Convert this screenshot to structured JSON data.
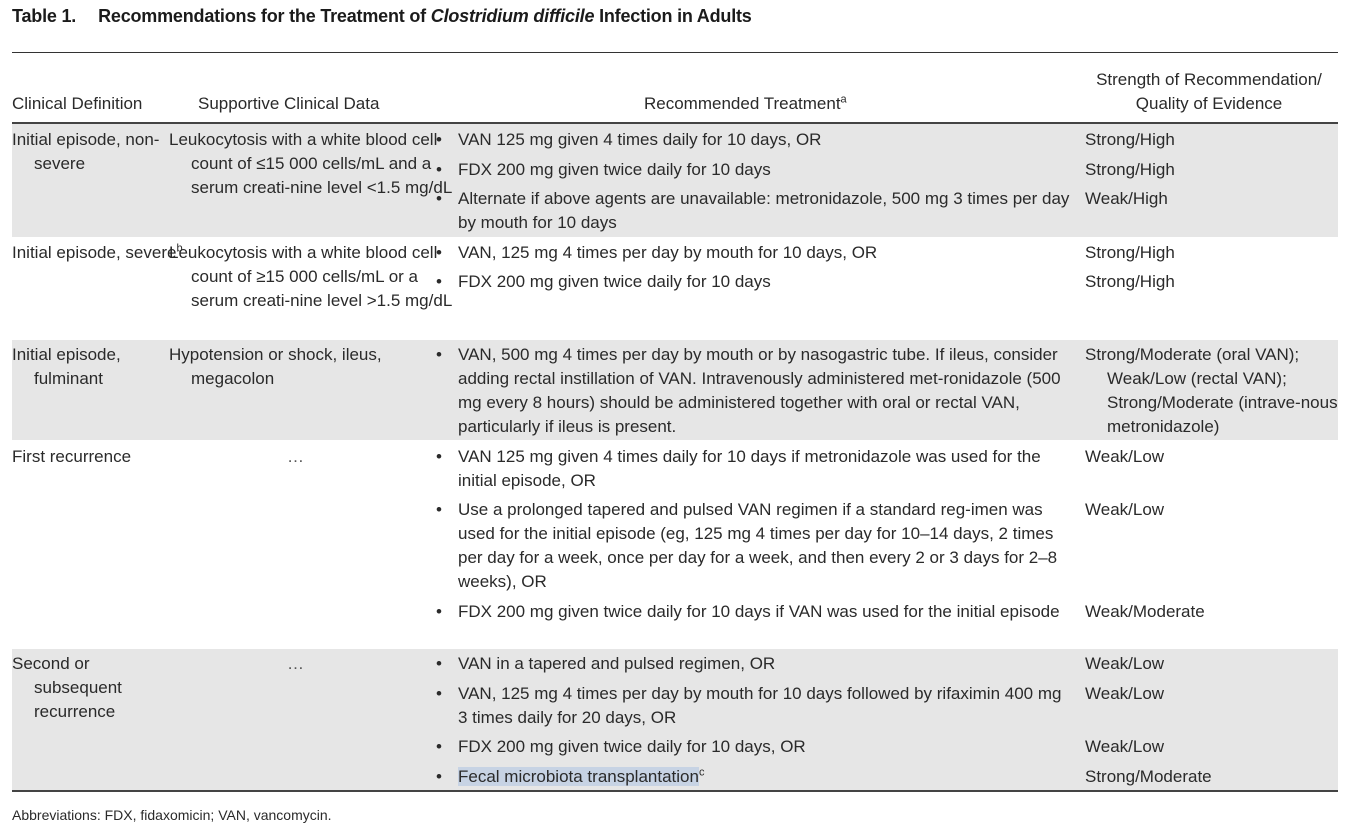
{
  "title": {
    "number": "Table 1.",
    "prefix": "Recommendations for the Treatment of",
    "organism": "Clostridium difficile",
    "suffix": "Infection in Adults"
  },
  "headers": {
    "clinical_definition": "Clinical Definition",
    "supportive_data": "Supportive Clinical Data",
    "treatment": "Recommended Treatment",
    "treatment_sup": "a",
    "strength_line1": "Strength of Recommendation/",
    "strength_line2": "Quality of Evidence"
  },
  "rows": [
    {
      "definition": "Initial episode, non-severe",
      "supportive": "Leukocytosis with a white blood cell count of ≤15 000 cells/mL and a serum creati-nine level <1.5 mg/dL",
      "treatments": [
        {
          "text": "VAN 125 mg given 4 times daily for 10 days, OR",
          "strength": "Strong/High"
        },
        {
          "text": "FDX 200 mg given twice daily for 10 days",
          "strength": "Strong/High"
        },
        {
          "text": "Alternate if above agents are unavailable: metronidazole, 500 mg 3 times per day by mouth for 10 days",
          "strength": "Weak/High"
        }
      ]
    },
    {
      "definition": "Initial episode, severe",
      "definition_sup": "b",
      "supportive": "Leukocytosis with a white blood cell count of ≥15 000 cells/mL or a serum creati-nine level >1.5 mg/dL",
      "treatments": [
        {
          "text": "VAN, 125 mg 4 times per day by mouth for 10 days, OR",
          "strength": "Strong/High"
        },
        {
          "text": "FDX 200 mg given twice daily for 10 days",
          "strength": "Strong/High"
        }
      ]
    },
    {
      "definition": "Initial episode, fulminant",
      "supportive": "Hypotension or shock, ileus, megacolon",
      "treatments": [
        {
          "text": "VAN, 500 mg 4 times per day by mouth or by nasogastric tube. If ileus, consider adding rectal instillation of VAN. Intravenously administered met-ronidazole (500 mg every 8 hours) should be administered together with oral or rectal VAN, particularly if ileus is present.",
          "strength": "Strong/Moderate (oral VAN); Weak/Low (rectal VAN); Strong/Moderate (intrave-nous metronidazole)"
        }
      ]
    },
    {
      "definition": "First recurrence",
      "supportive": "…",
      "treatments": [
        {
          "text": "VAN 125 mg given 4 times daily for 10 days if metronidazole was used for the initial episode, OR",
          "strength": "Weak/Low"
        },
        {
          "text": "Use a prolonged tapered and pulsed VAN regimen if a standard reg-imen was used for the initial episode (eg, 125 mg 4 times per day for 10–14 days, 2 times per day for a week, once per day for a week, and then every 2 or 3 days for 2–8 weeks), OR",
          "strength": "Weak/Low"
        },
        {
          "text": "FDX 200 mg given twice daily for 10 days if VAN was used for the initial episode",
          "strength": "Weak/Moderate"
        }
      ]
    },
    {
      "definition": "Second or subsequent recurrence",
      "supportive": "…",
      "treatments": [
        {
          "text": "VAN in a tapered and pulsed regimen, OR",
          "strength": "Weak/Low"
        },
        {
          "text": "VAN, 125 mg 4 times per day by mouth for 10 days followed by rifaximin 400 mg 3 times daily for 20 days, OR",
          "strength": "Weak/Low"
        },
        {
          "text": "FDX 200 mg given twice daily for 10 days, OR",
          "strength": "Weak/Low"
        },
        {
          "text": "Fecal microbiota transplantation",
          "text_sup": "c",
          "highlighted": true,
          "strength": "Strong/Moderate"
        }
      ]
    }
  ],
  "footnote": "Abbreviations: FDX, fidaxomicin; VAN, vancomycin.",
  "colors": {
    "row_shade": "#e6e6e6",
    "selection": "#c7d3e4"
  }
}
